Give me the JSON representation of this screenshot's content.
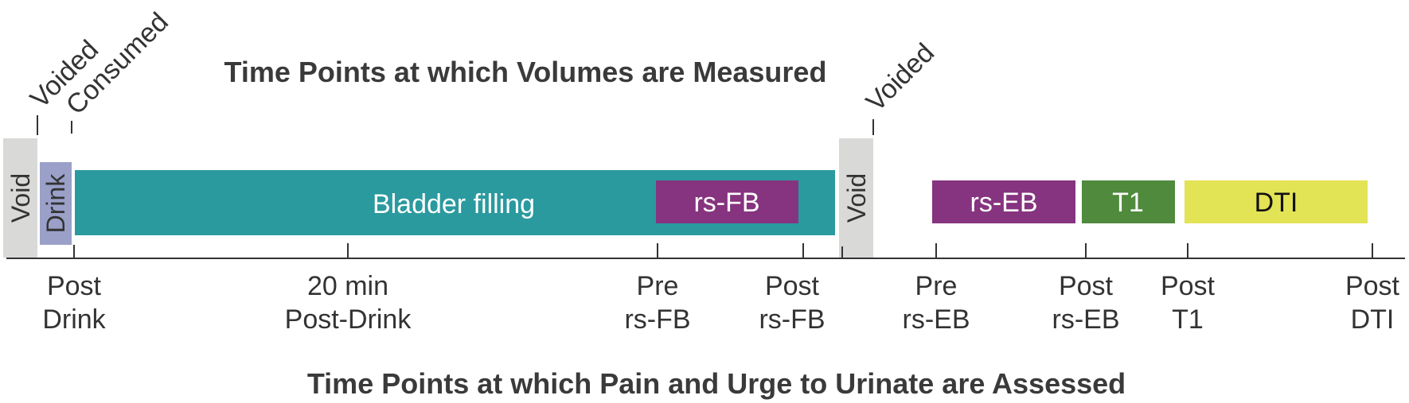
{
  "titles": {
    "top": "Time Points at which Volumes are Measured",
    "bottom": "Time Points at which Pain and Urge to Urinate are Assessed"
  },
  "top_markers": {
    "voided_1": "Voided",
    "consumed": "Consumed",
    "voided_2": "Voided"
  },
  "blocks": {
    "void_1": "Void",
    "drink": "Drink",
    "bladder_filling": "Bladder filling",
    "rs_fb": "rs-FB",
    "void_2": "Void",
    "rs_eb": "rs-EB",
    "t1": "T1",
    "dti": "DTI"
  },
  "tick_labels": [
    [
      "Post",
      "Drink"
    ],
    [
      "20 min",
      "Post-Drink"
    ],
    [
      "Pre",
      "rs-FB"
    ],
    [
      "Post",
      "rs-FB"
    ],
    [
      "Pre",
      "rs-EB"
    ],
    [
      "Post",
      "rs-EB"
    ],
    [
      "Post",
      "T1"
    ],
    [
      "Post",
      "DTI"
    ]
  ],
  "colors": {
    "void": "#d9d9d7",
    "drink": "#9aa0c8",
    "bladder_filling": "#2a9a9f",
    "rs": "#86347f",
    "t1": "#4f8a3d",
    "dti": "#e3e356",
    "text": "#333333"
  }
}
